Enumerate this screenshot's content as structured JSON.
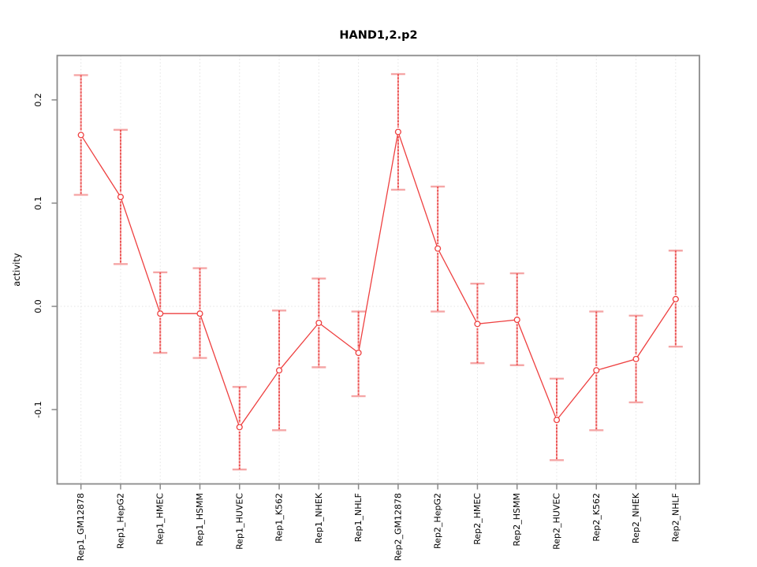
{
  "chart_data": {
    "type": "line",
    "title": "HAND1,2.p2",
    "xlabel": "",
    "ylabel": "activity",
    "legend_position": "none",
    "grid": {
      "vertical_dotted": true,
      "zero_line_dotted": true
    },
    "categories": [
      "Rep1_GM12878",
      "Rep1_HepG2",
      "Rep1_HMEC",
      "Rep1_HSMM",
      "Rep1_HUVEC",
      "Rep1_K562",
      "Rep1_NHEK",
      "Rep1_NHLF",
      "Rep2_GM12878",
      "Rep2_HepG2",
      "Rep2_HMEC",
      "Rep2_HSMM",
      "Rep2_HUVEC",
      "Rep2_K562",
      "Rep2_NHEK",
      "Rep2_NHLF"
    ],
    "series": [
      {
        "name": "activity",
        "values": [
          0.166,
          0.106,
          -0.007,
          -0.007,
          -0.117,
          -0.062,
          -0.016,
          -0.045,
          0.169,
          0.056,
          -0.017,
          -0.013,
          -0.11,
          -0.062,
          -0.051,
          0.007
        ],
        "error_low": [
          0.108,
          0.041,
          -0.045,
          -0.05,
          -0.158,
          -0.12,
          -0.059,
          -0.087,
          0.113,
          -0.005,
          -0.055,
          -0.057,
          -0.149,
          -0.12,
          -0.093,
          -0.039
        ],
        "error_high": [
          0.224,
          0.171,
          0.033,
          0.037,
          -0.078,
          -0.004,
          0.027,
          -0.005,
          0.225,
          0.116,
          0.022,
          0.032,
          -0.07,
          -0.005,
          -0.009,
          0.054
        ]
      }
    ],
    "ylim": [
      -0.172,
      0.243
    ],
    "yticks": [
      -0.1,
      0.0,
      0.1,
      0.2
    ],
    "ytick_labels": [
      "-0.1",
      "0.0",
      "0.1",
      "0.2"
    ]
  },
  "colors": {
    "series_line": "#ee4040",
    "marker_stroke": "#ee4040",
    "marker_fill": "#ffffff",
    "error_bar": "#f5a6a6",
    "error_bar_dash": "#ea4444",
    "grid": "#e3e3e3",
    "box": "#8a8a8a",
    "tick": "#8a8a8a",
    "text": "#000000",
    "background": "#ffffff"
  }
}
